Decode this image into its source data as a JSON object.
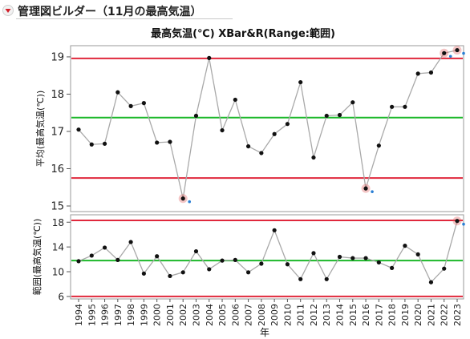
{
  "header": {
    "title": "管理図ビルダー（11月の最高気温）"
  },
  "chart_data": {
    "type": "line",
    "title": "最高気温(℃)  XBar&R(Range:範囲)",
    "xlabel": "年",
    "categories": [
      "1994",
      "1995",
      "1996",
      "1997",
      "1998",
      "1999",
      "2000",
      "2001",
      "2002",
      "2003",
      "2004",
      "2005",
      "2006",
      "2007",
      "2008",
      "2009",
      "2010",
      "2011",
      "2012",
      "2013",
      "2014",
      "2015",
      "2016",
      "2017",
      "2018",
      "2019",
      "2020",
      "2021",
      "2022",
      "2023"
    ],
    "panels": [
      {
        "name": "xbar",
        "ylabel": "平均(最高気温(℃))",
        "ylim": [
          14.85,
          19.3
        ],
        "yticks": [
          15,
          16,
          17,
          18,
          19
        ],
        "values": [
          17.05,
          16.65,
          16.67,
          18.05,
          17.68,
          17.76,
          16.7,
          16.72,
          15.2,
          17.42,
          18.97,
          17.03,
          17.85,
          16.6,
          16.42,
          16.93,
          17.2,
          18.32,
          16.3,
          17.42,
          17.44,
          17.78,
          15.47,
          16.62,
          17.66,
          17.66,
          18.55,
          18.58,
          19.1,
          19.18
        ],
        "ucl": 18.96,
        "center": 17.37,
        "lcl": 15.75,
        "flagged_indices": [
          8,
          22,
          28,
          29
        ],
        "grid": false
      },
      {
        "name": "range",
        "ylabel": "範囲(最高気温(℃))",
        "ylim": [
          5.6,
          19.2
        ],
        "yticks": [
          6,
          10,
          14,
          18
        ],
        "values": [
          11.7,
          12.6,
          13.9,
          11.9,
          14.8,
          9.7,
          12.5,
          9.3,
          9.9,
          13.3,
          10.4,
          11.8,
          11.9,
          9.9,
          11.3,
          16.7,
          11.2,
          8.8,
          13.0,
          8.8,
          12.4,
          12.2,
          12.2,
          11.5,
          10.6,
          14.2,
          12.8,
          8.3,
          10.5,
          18.2
        ],
        "ucl": 18.3,
        "center": 11.8,
        "lcl": 6.0,
        "flagged_indices": [
          29
        ],
        "grid": false
      }
    ],
    "colors": {
      "limit": "#e0283c",
      "center": "#1cb82a",
      "series": "#a9a9a9",
      "point": "#111111",
      "flag": "#e05a5a"
    }
  }
}
